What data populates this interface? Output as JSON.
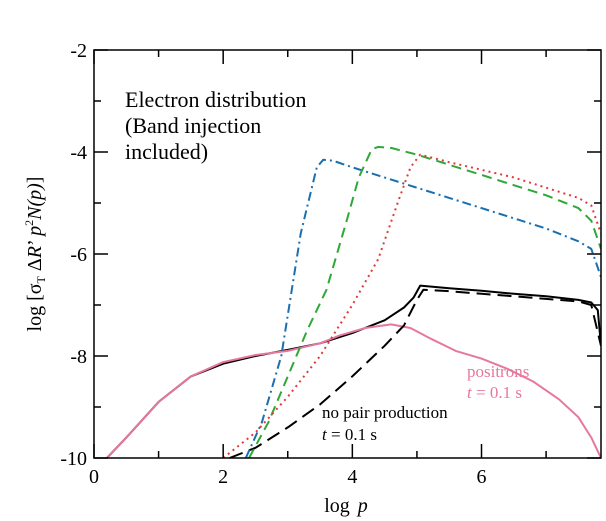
{
  "chart_data": {
    "type": "line",
    "xlabel": {
      "prefix": "log",
      "var": "p"
    },
    "ylabel": {
      "prefix": "log [",
      "sigma": "σ",
      "sub": "T",
      "mid": " Δ",
      "R": "R",
      "prime": "’ ",
      "p": "p",
      "sup": "2",
      "N": "N",
      "np": "(p)",
      "close": "]"
    },
    "xlim": [
      0,
      7.85
    ],
    "ylim": [
      -10,
      -2
    ],
    "xticks": [
      0,
      2,
      4,
      6
    ],
    "xtick_labels": [
      "0",
      "2",
      "4",
      "6"
    ],
    "yticks": [
      -10,
      -8,
      -6,
      -4,
      -2
    ],
    "ytick_labels": [
      "-10",
      "-8",
      "-6",
      "-4",
      "-2"
    ],
    "grid": false,
    "annotations": {
      "title_lines": [
        "Electron distribution",
        "(Band injection",
        "included)"
      ],
      "positrons": {
        "label": "positrons",
        "t_var": "t",
        "t_val": " = 0.1 s"
      },
      "nopair": {
        "label": "no pair production",
        "t_var": "t",
        "t_val": " = 0.1 s"
      }
    },
    "series": [
      {
        "color": "#000000",
        "dash": "",
        "x": [
          0.2,
          0.5,
          1.0,
          1.5,
          2.0,
          2.5,
          3.0,
          3.5,
          4.0,
          4.5,
          4.8,
          4.95,
          5.05,
          5.5,
          6.0,
          6.5,
          7.0,
          7.5,
          7.7,
          7.8,
          7.85
        ],
        "y": [
          -10.0,
          -9.6,
          -8.9,
          -8.4,
          -8.15,
          -8.0,
          -7.88,
          -7.75,
          -7.55,
          -7.3,
          -7.05,
          -6.85,
          -6.62,
          -6.67,
          -6.72,
          -6.78,
          -6.83,
          -6.9,
          -6.95,
          -7.1,
          -7.8
        ]
      },
      {
        "color": "#e8779e",
        "dash": "",
        "x": [
          0.2,
          0.5,
          1.0,
          1.5,
          2.0,
          2.5,
          3.0,
          3.5,
          3.8,
          4.2,
          4.6,
          4.9,
          5.2,
          5.6,
          6.0,
          6.4,
          6.8,
          7.2,
          7.5,
          7.7,
          7.85
        ],
        "y": [
          -10.0,
          -9.6,
          -8.9,
          -8.4,
          -8.12,
          -7.98,
          -7.9,
          -7.75,
          -7.6,
          -7.45,
          -7.38,
          -7.45,
          -7.65,
          -7.9,
          -8.05,
          -8.25,
          -8.5,
          -8.85,
          -9.2,
          -9.6,
          -10.0
        ]
      },
      {
        "color": "#000000",
        "dash": "14,7",
        "x": [
          2.1,
          2.5,
          3.0,
          3.5,
          4.0,
          4.5,
          4.8,
          5.0,
          5.1,
          5.5,
          6.0,
          6.5,
          7.0,
          7.5,
          7.7,
          7.85
        ],
        "y": [
          -10.0,
          -9.8,
          -9.4,
          -8.95,
          -8.4,
          -7.8,
          -7.4,
          -6.9,
          -6.7,
          -6.73,
          -6.78,
          -6.83,
          -6.88,
          -6.93,
          -7.0,
          -7.8
        ]
      },
      {
        "color": "#1a6faf",
        "dash": "9,4,2,4",
        "x": [
          2.35,
          2.6,
          2.9,
          3.2,
          3.45,
          3.55,
          3.7,
          4.0,
          4.5,
          5.0,
          5.5,
          6.0,
          6.5,
          7.0,
          7.5,
          7.7,
          7.85
        ],
        "y": [
          -10.0,
          -9.3,
          -8.0,
          -5.6,
          -4.3,
          -4.15,
          -4.17,
          -4.3,
          -4.5,
          -4.7,
          -4.9,
          -5.1,
          -5.3,
          -5.5,
          -5.75,
          -5.9,
          -6.45
        ]
      },
      {
        "color": "#2ea836",
        "dash": "10,6",
        "x": [
          2.4,
          2.7,
          3.0,
          3.3,
          3.6,
          3.9,
          4.1,
          4.3,
          4.4,
          4.6,
          5.0,
          5.5,
          6.0,
          6.5,
          7.0,
          7.5,
          7.7,
          7.85
        ],
        "y": [
          -10.0,
          -9.3,
          -8.4,
          -7.5,
          -6.7,
          -5.4,
          -4.5,
          -3.95,
          -3.9,
          -3.92,
          -4.05,
          -4.25,
          -4.45,
          -4.65,
          -4.85,
          -5.1,
          -5.35,
          -5.9
        ]
      },
      {
        "color": "#e03a3a",
        "dash": "2,4",
        "x": [
          2.0,
          2.5,
          3.0,
          3.5,
          4.0,
          4.4,
          4.7,
          4.9,
          5.05,
          5.5,
          6.0,
          6.5,
          7.0,
          7.5,
          7.7,
          7.85
        ],
        "y": [
          -10.0,
          -9.5,
          -8.8,
          -8.0,
          -7.0,
          -6.1,
          -5.0,
          -4.3,
          -4.05,
          -4.2,
          -4.35,
          -4.5,
          -4.7,
          -4.9,
          -5.05,
          -5.6
        ]
      }
    ]
  }
}
